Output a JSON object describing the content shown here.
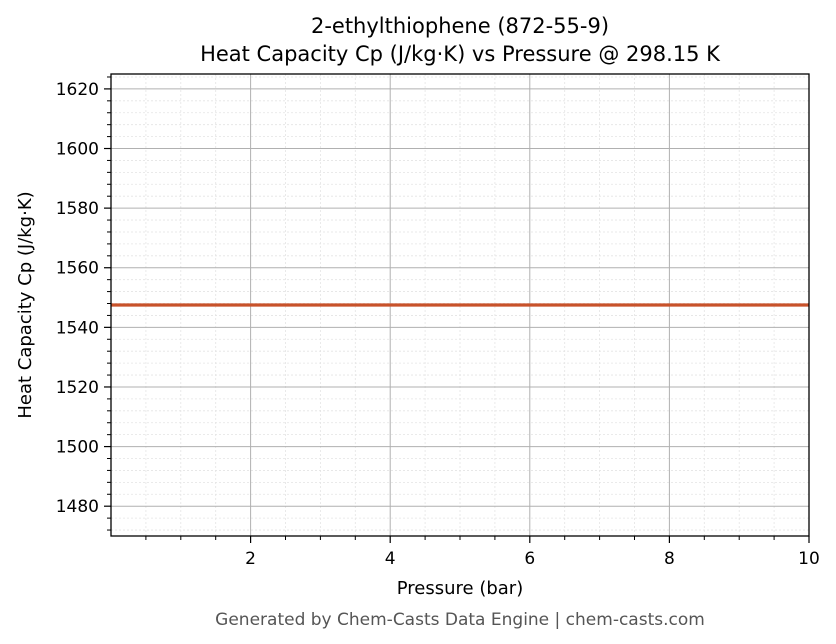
{
  "chart_data": {
    "type": "line",
    "title_line1": "2-ethylthiophene (872-55-9)",
    "title_line2": "Heat Capacity Cp (J/kg·K) vs Pressure @ 298.15 K",
    "xlabel": "Pressure (bar)",
    "ylabel": "Heat Capacity Cp (J/kg·K)",
    "xlim": [
      0.0,
      10.0
    ],
    "ylim": [
      1470.0,
      1625.0
    ],
    "x_ticks": [
      2,
      4,
      6,
      8,
      10
    ],
    "y_ticks": [
      1480,
      1500,
      1520,
      1540,
      1560,
      1580,
      1600,
      1620
    ],
    "grid": true,
    "series": [
      {
        "color": "#c8522a",
        "x": [
          0.0,
          10.0
        ],
        "y": [
          1547.5,
          1547.5
        ]
      }
    ]
  },
  "footer": "Generated by Chem-Casts Data Engine | chem-casts.com"
}
